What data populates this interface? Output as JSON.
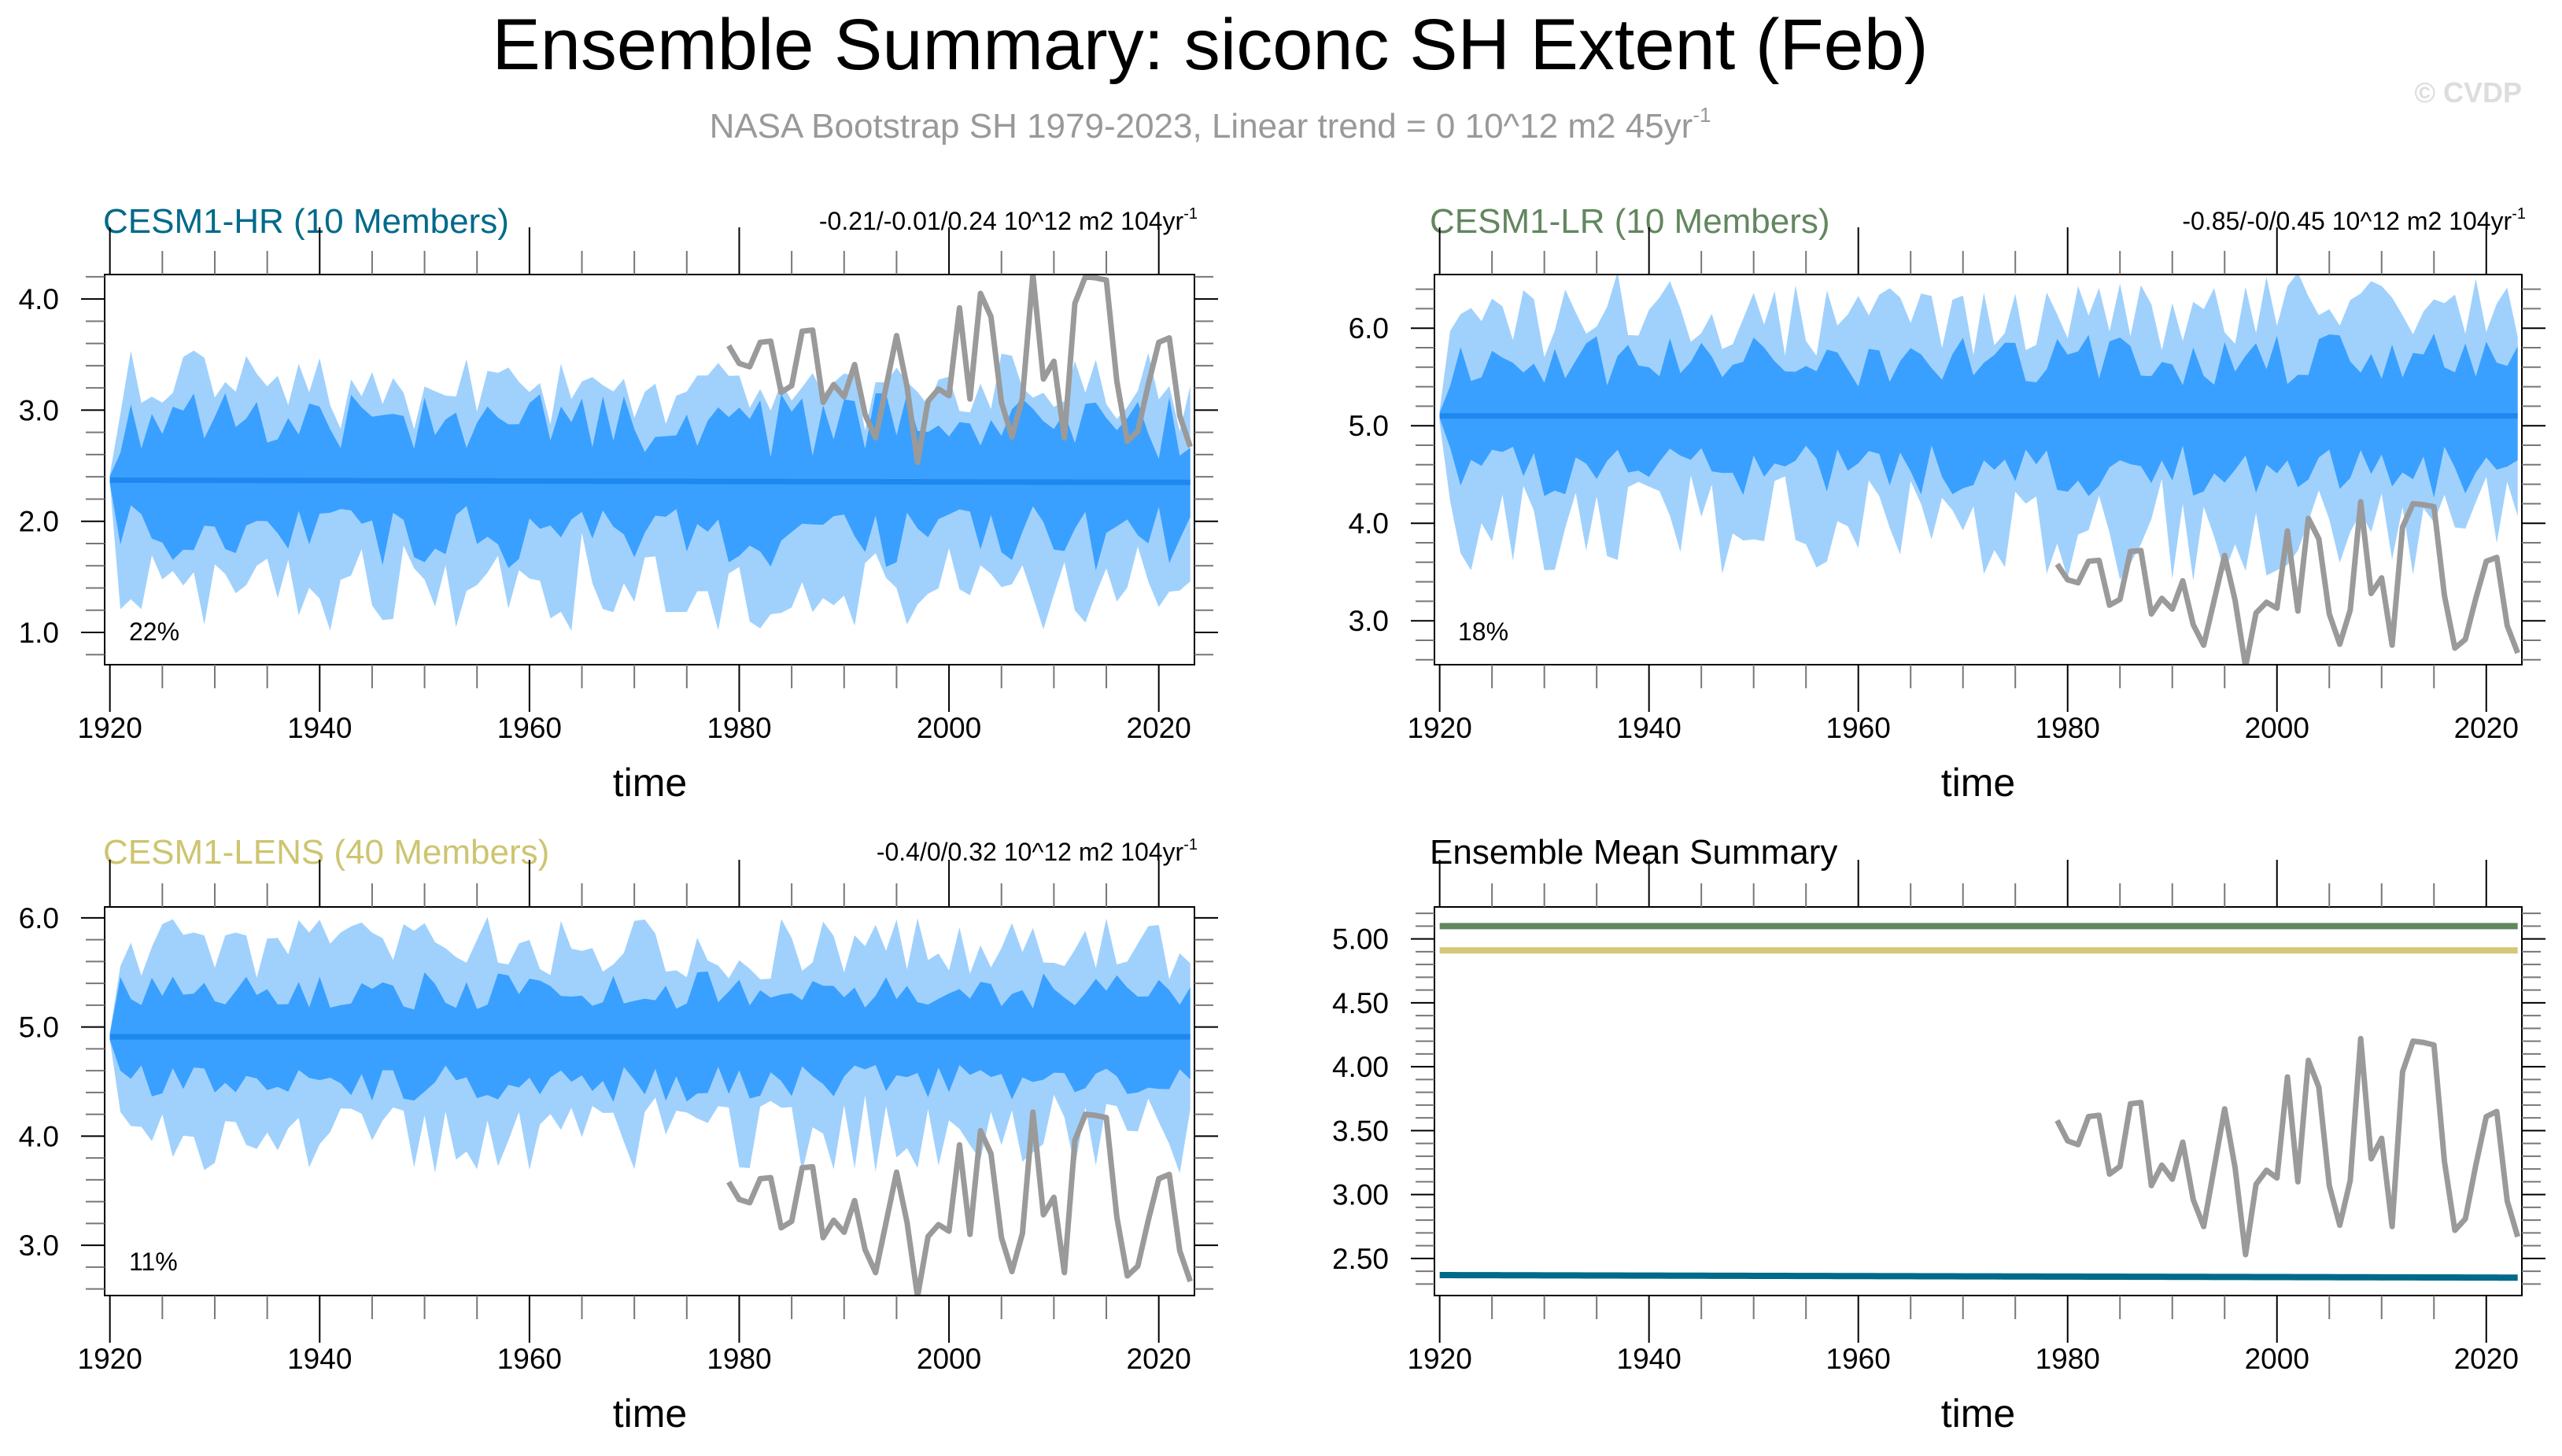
{
  "title": "Ensemble Summary: siconc SH Extent (Feb)",
  "subtitle": "NASA Bootstrap SH 1979-2023, Linear trend = 0 10^12 m2 45yr",
  "subtitle_sup": "-1",
  "watermark": "© CVDP",
  "colors": {
    "outer_band": "#a0d1fd",
    "inner_band": "#3aa0ff",
    "ens_mean": "#1e88ee",
    "obs": "#9a9a9a",
    "hr": "#006a8a",
    "lr": "#62875f",
    "lens": "#cdc570"
  },
  "observations": {
    "name": "NASA Bootstrap SH",
    "start_year": 1979,
    "values": [
      3.58,
      3.42,
      3.39,
      3.61,
      3.62,
      3.16,
      3.22,
      3.71,
      3.72,
      3.07,
      3.23,
      3.12,
      3.41,
      2.96,
      2.75,
      3.21,
      3.67,
      3.21,
      2.53,
      3.08,
      3.19,
      3.13,
      3.92,
      3.1,
      4.05,
      3.84,
      3.07,
      2.76,
      3.11,
      4.22,
      3.28,
      3.44,
      2.75,
      3.96,
      4.2,
      4.19,
      4.17,
      3.26,
      2.72,
      2.81,
      3.23,
      3.61,
      3.65,
      2.95,
      2.67
    ]
  },
  "chart_data": [
    {
      "type": "area",
      "title": "CESM1-HR (10 Members)",
      "title_color": "#006a8a",
      "trend_text": "-0.21/-0.01/0.24 10^12 m2 104yr",
      "trend_sup": "-1",
      "percent_label": "22%",
      "xlabel": "time",
      "xlim": [
        1919.5,
        2023.4
      ],
      "xticks": [
        "1920",
        "1940",
        "1960",
        "1980",
        "2000",
        "2020"
      ],
      "ylim": [
        0.71,
        4.22
      ],
      "yticks": [
        "1.0",
        "2.0",
        "3.0",
        "4.0"
      ],
      "yminor_step": 0.2,
      "years": [
        1920,
        2023
      ],
      "ensemble_mean": [
        2.37,
        2.35
      ],
      "inner_band_offsets": [
        0.2,
        0.8
      ],
      "outer_band_offsets": [
        0.45,
        1.35
      ],
      "seed": 11,
      "show_obs": true
    },
    {
      "type": "area",
      "title": "CESM1-LR (10 Members)",
      "title_color": "#62875f",
      "trend_text": "-0.85/-0/0.45 10^12 m2 104yr",
      "trend_sup": "-1",
      "percent_label": "18%",
      "xlabel": "time",
      "xlim": [
        1919.5,
        2023.4
      ],
      "xticks": [
        "1920",
        "1940",
        "1960",
        "1980",
        "2000",
        "2020"
      ],
      "ylim": [
        2.55,
        6.55
      ],
      "yticks": [
        "3.0",
        "4.0",
        "5.0",
        "6.0"
      ],
      "yminor_step": 0.2,
      "years": [
        1920,
        2023
      ],
      "ensemble_mean": [
        5.1,
        5.1
      ],
      "inner_band_offsets": [
        0.3,
        0.85
      ],
      "outer_band_offsets": [
        0.6,
        1.7
      ],
      "seed": 23,
      "show_obs": true
    },
    {
      "type": "area",
      "title": "CESM1-LENS (40 Members)",
      "title_color": "#cdc570",
      "trend_text": "-0.4/0/0.32 10^12 m2 104yr",
      "trend_sup": "-1",
      "percent_label": "11%",
      "xlabel": "time",
      "xlim": [
        1919.5,
        2023.4
      ],
      "xticks": [
        "1920",
        "1940",
        "1960",
        "1980",
        "2000",
        "2020"
      ],
      "ylim": [
        2.54,
        6.1
      ],
      "yticks": [
        "3.0",
        "4.0",
        "5.0",
        "6.0"
      ],
      "yminor_step": 0.2,
      "years": [
        1920,
        2023
      ],
      "ensemble_mean": [
        4.91,
        4.91
      ],
      "inner_band_offsets": [
        0.25,
        0.6
      ],
      "outer_band_offsets": [
        0.5,
        1.25
      ],
      "seed": 37,
      "show_obs": true
    },
    {
      "type": "line",
      "title": "Ensemble Mean Summary",
      "title_color": "#000000",
      "xlabel": "time",
      "xlim": [
        1919.5,
        2023.4
      ],
      "xticks": [
        "1920",
        "1940",
        "1960",
        "1980",
        "2000",
        "2020"
      ],
      "ylim": [
        2.21,
        5.25
      ],
      "yticks": [
        "2.50",
        "3.00",
        "3.50",
        "4.00",
        "4.50",
        "5.00"
      ],
      "yminor_step": 0.1,
      "years": [
        1920,
        2023
      ],
      "series": [
        {
          "name": "CESM1-LR",
          "color": "#62875f",
          "values": [
            5.1,
            5.1
          ]
        },
        {
          "name": "CESM1-LENS",
          "color": "#d2c878",
          "values": [
            4.91,
            4.91
          ]
        },
        {
          "name": "CESM1-HR",
          "color": "#006a8a",
          "values": [
            2.37,
            2.35
          ]
        }
      ],
      "show_obs": true
    }
  ]
}
